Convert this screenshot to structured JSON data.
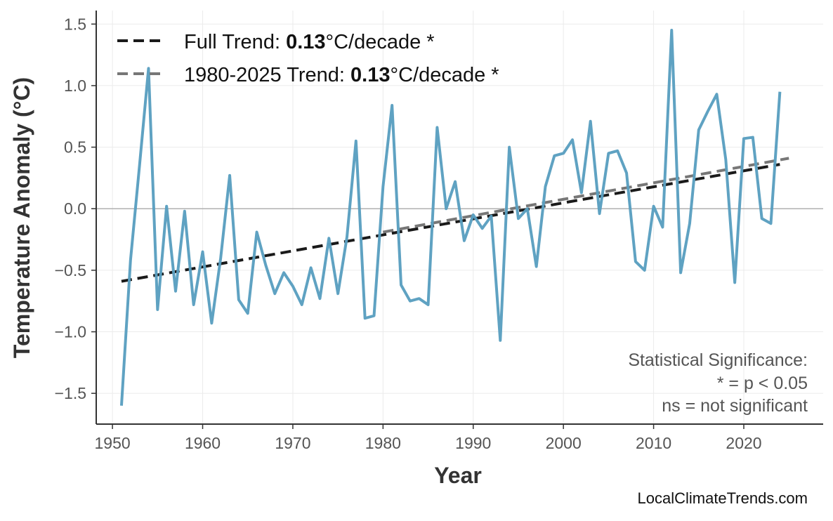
{
  "chart_data": {
    "type": "line",
    "xlabel": "Year",
    "ylabel": "Temperature Anomaly (°C)",
    "xlim": [
      1948.2,
      2028.8
    ],
    "ylim": [
      -1.75,
      1.61
    ],
    "xticks": [
      1950,
      1960,
      1970,
      1980,
      1990,
      2000,
      2010,
      2020
    ],
    "yticks": [
      -1.5,
      -1.0,
      -0.5,
      0.0,
      0.5,
      1.0,
      1.5
    ],
    "ytick_labels": [
      "−1.5",
      "−1.0",
      "−0.5",
      "0.0",
      "0.5",
      "1.0",
      "1.5"
    ],
    "grid": true,
    "legend_position": "top-left",
    "x": [
      1951,
      1952,
      1953,
      1954,
      1955,
      1956,
      1957,
      1958,
      1959,
      1960,
      1961,
      1962,
      1963,
      1964,
      1965,
      1966,
      1967,
      1968,
      1969,
      1970,
      1971,
      1972,
      1973,
      1974,
      1975,
      1976,
      1977,
      1978,
      1979,
      1980,
      1981,
      1982,
      1983,
      1984,
      1985,
      1986,
      1987,
      1988,
      1989,
      1990,
      1991,
      1992,
      1993,
      1994,
      1995,
      1996,
      1997,
      1998,
      1999,
      2000,
      2001,
      2002,
      2003,
      2004,
      2005,
      2006,
      2007,
      2008,
      2009,
      2010,
      2011,
      2012,
      2013,
      2014,
      2015,
      2016,
      2017,
      2018,
      2019,
      2020,
      2021,
      2022,
      2023,
      2024
    ],
    "series": [
      {
        "color": "#5a9fc0",
        "values": [
          -1.6,
          -0.42,
          0.35,
          1.14,
          -0.82,
          0.02,
          -0.67,
          -0.02,
          -0.78,
          -0.35,
          -0.93,
          -0.4,
          0.27,
          -0.74,
          -0.85,
          -0.19,
          -0.46,
          -0.69,
          -0.52,
          -0.63,
          -0.78,
          -0.48,
          -0.73,
          -0.24,
          -0.69,
          -0.23,
          0.55,
          -0.89,
          -0.87,
          0.18,
          0.84,
          -0.62,
          -0.75,
          -0.73,
          -0.78,
          0.66,
          0.0,
          0.22,
          -0.26,
          -0.05,
          -0.16,
          -0.06,
          -1.07,
          0.5,
          -0.08,
          0.0,
          -0.47,
          0.18,
          0.43,
          0.45,
          0.56,
          0.13,
          0.71,
          -0.04,
          0.45,
          0.47,
          0.29,
          -0.43,
          -0.5,
          0.02,
          -0.15,
          1.45,
          -0.52,
          -0.12,
          0.64,
          0.79,
          0.93,
          0.4,
          -0.6,
          0.57,
          0.58,
          -0.08,
          -0.12,
          0.95
        ]
      }
    ],
    "trends": [
      {
        "color": "#1a1a1a",
        "x": [
          1951,
          2024
        ],
        "y": [
          -0.59,
          0.36
        ],
        "label_prefix": "Full Trend: ",
        "label_value": "0.13",
        "label_suffix": "°C/decade *"
      },
      {
        "color": "#777777",
        "x": [
          1980,
          2025
        ],
        "y": [
          -0.19,
          0.41
        ],
        "label_prefix": "1980-2025 Trend: ",
        "label_value": "0.13",
        "label_suffix": "°C/decade *"
      }
    ],
    "annotation": [
      "Statistical Significance:",
      "* = p < 0.05",
      "ns = not significant"
    ],
    "watermark": "LocalClimateTrends.com"
  }
}
